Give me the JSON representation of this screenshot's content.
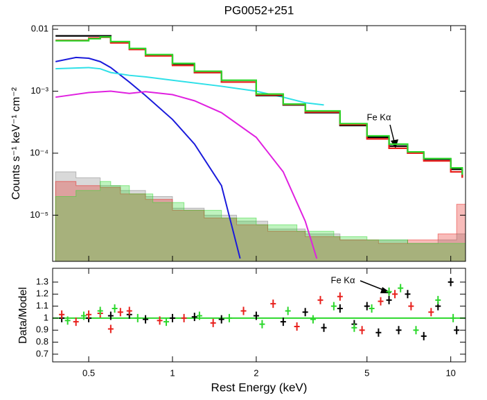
{
  "chart_data": [
    {
      "type": "line",
      "title": "PG0052+251",
      "ylabel": "Counts s⁻¹ keV⁻¹ cm⁻²",
      "annotation": "Fe Kα",
      "xscale": "log",
      "yscale": "log",
      "xlim": [
        0.371,
        11.3
      ],
      "ylim": [
        1.8e-06,
        0.0114
      ],
      "yticks": [
        {
          "value": 0.01,
          "label": "0.01"
        },
        {
          "value": 0.001,
          "label": "10⁻³"
        },
        {
          "value": 0.0001,
          "label": "10⁻⁴"
        },
        {
          "value": 1e-05,
          "label": "10⁻⁵"
        }
      ],
      "series": [
        {
          "name": "background 1",
          "style": "fill",
          "color": "#808080",
          "x": [
            0.38,
            0.45,
            0.55,
            0.65,
            0.8,
            1,
            1.3,
            1.7,
            2.2,
            3,
            4,
            5.5,
            7,
            9,
            10.5,
            11.3
          ],
          "values": [
            5e-05,
            4e-05,
            3e-05,
            2.5e-05,
            2e-05,
            1.3e-05,
            1e-05,
            8e-06,
            6e-06,
            5e-06,
            4e-06,
            4e-06,
            3.5e-06,
            4e-06,
            5e-06,
            5e-06
          ]
        },
        {
          "name": "background 2",
          "style": "fill",
          "color": "#e8201c",
          "x": [
            0.38,
            0.45,
            0.55,
            0.65,
            0.8,
            1,
            1.3,
            1.7,
            2.2,
            3,
            4,
            5.5,
            7,
            9,
            10.5,
            11.3
          ],
          "values": [
            3.5e-05,
            3e-05,
            2.8e-05,
            2.2e-05,
            1.8e-05,
            1.2e-05,
            9e-06,
            7e-06,
            5.5e-06,
            4.5e-06,
            4e-06,
            3.5e-06,
            4e-06,
            5e-06,
            1.5e-05,
            1.5e-05
          ]
        },
        {
          "name": "background 3",
          "style": "fill",
          "color": "#2bd82b",
          "x": [
            0.38,
            0.45,
            0.55,
            0.6,
            0.7,
            0.85,
            1.1,
            1.5,
            2,
            2.8,
            3.8,
            5,
            7,
            9,
            11.3
          ],
          "values": [
            2e-05,
            2.5e-05,
            3.5e-05,
            3e-05,
            2.2e-05,
            1.6e-05,
            1.2e-05,
            9e-06,
            7e-06,
            5.5e-06,
            4.5e-06,
            4e-06,
            3.5e-06,
            3.5e-06,
            3.5e-06
          ]
        },
        {
          "name": "soft component",
          "style": "line",
          "color": "#1a1adb",
          "x": [
            0.38,
            0.45,
            0.5,
            0.55,
            0.6,
            0.7,
            0.8,
            1,
            1.2,
            1.5,
            1.75
          ],
          "values": [
            0.003,
            0.0035,
            0.0034,
            0.003,
            0.0024,
            0.0014,
            0.00085,
            0.00035,
            0.00014,
            3e-05,
            2e-06
          ]
        },
        {
          "name": "power law",
          "style": "line",
          "color": "#2ee0e8",
          "x": [
            0.38,
            0.5,
            0.55,
            0.6,
            0.7,
            0.8,
            1,
            1.5,
            2,
            2.5,
            3,
            3.5
          ],
          "values": [
            0.0023,
            0.0024,
            0.0023,
            0.002,
            0.0018,
            0.0017,
            0.0015,
            0.0012,
            0.001,
            0.0008,
            0.00065,
            0.0006
          ]
        },
        {
          "name": "reflection",
          "style": "line",
          "color": "#e020e0",
          "x": [
            0.38,
            0.5,
            0.6,
            0.7,
            0.8,
            1,
            1.2,
            1.5,
            2,
            2.5,
            3,
            3.3
          ],
          "values": [
            0.0008,
            0.00095,
            0.001,
            0.00092,
            0.00098,
            0.00088,
            0.0007,
            0.00045,
            0.00018,
            5e-05,
            8e-06,
            2e-06
          ]
        },
        {
          "name": "spectrum 1",
          "style": "step",
          "color": "#000000",
          "x": [
            0.38,
            0.5,
            0.55,
            0.6,
            0.7,
            0.8,
            1,
            1.2,
            1.5,
            2,
            2.5,
            3,
            4,
            5,
            6,
            7,
            8,
            10,
            11
          ],
          "values": [
            0.0078,
            0.0078,
            0.0078,
            0.0062,
            0.0048,
            0.0038,
            0.0027,
            0.002,
            0.0014,
            0.00085,
            0.0006,
            0.00045,
            0.00028,
            0.00018,
            0.00013,
            0.0001,
            8e-05,
            5.5e-05,
            4e-05
          ]
        },
        {
          "name": "spectrum 2",
          "style": "step",
          "color": "#e8201c",
          "x": [
            0.38,
            0.5,
            0.55,
            0.6,
            0.7,
            0.8,
            1,
            1.2,
            1.5,
            2,
            2.5,
            3,
            4,
            5,
            6,
            7,
            8,
            10,
            11
          ],
          "values": [
            0.0066,
            0.0072,
            0.0074,
            0.006,
            0.0047,
            0.0037,
            0.0026,
            0.002,
            0.0014,
            0.00087,
            0.00061,
            0.00046,
            0.00029,
            0.00017,
            0.00012,
            0.0001,
            7.5e-05,
            5e-05,
            4e-05
          ]
        },
        {
          "name": "spectrum 3",
          "style": "step",
          "color": "#2bd82b",
          "x": [
            0.38,
            0.5,
            0.55,
            0.6,
            0.7,
            0.8,
            1,
            1.2,
            1.5,
            2,
            2.5,
            3,
            4,
            5,
            6,
            7,
            8,
            10,
            11
          ],
          "values": [
            0.0065,
            0.007,
            0.0075,
            0.0063,
            0.0049,
            0.0039,
            0.0028,
            0.0021,
            0.0015,
            0.0009,
            0.00062,
            0.00048,
            0.0003,
            0.00019,
            0.00014,
            0.000105,
            8.2e-05,
            5.8e-05,
            4.5e-05
          ]
        }
      ]
    },
    {
      "type": "scatter",
      "ylabel": "Data/Model",
      "xlabel": "Rest Energy (keV)",
      "annotation": "Fe Kα",
      "xscale": "log",
      "yscale": "linear",
      "xlim": [
        0.371,
        11.3
      ],
      "ylim": [
        0.636,
        1.415
      ],
      "xticks": [
        0.5,
        1,
        2,
        5,
        10
      ],
      "yticks": [
        0.7,
        0.8,
        0.9,
        1,
        1.1,
        1.2,
        1.3
      ],
      "hline": 1,
      "hline_color": "#2bd82b",
      "series": [
        {
          "name": "ratio 1",
          "color": "#000000",
          "x": [
            0.4,
            0.5,
            0.6,
            0.7,
            0.8,
            1,
            1.2,
            1.5,
            2,
            2.5,
            3,
            3.5,
            4,
            4.5,
            5,
            5.5,
            6,
            6.5,
            7,
            8,
            9,
            10,
            10.5
          ],
          "values": [
            1,
            1,
            1.02,
            1.03,
            0.99,
            1,
            1.01,
            0.99,
            1.02,
            0.97,
            1.05,
            0.92,
            1.08,
            0.95,
            1.1,
            0.88,
            1.15,
            0.9,
            1.2,
            0.85,
            1.1,
            1.3,
            0.9
          ]
        },
        {
          "name": "ratio 2",
          "color": "#e8201c",
          "x": [
            0.4,
            0.45,
            0.5,
            0.55,
            0.6,
            0.65,
            0.7,
            0.9,
            1.1,
            1.4,
            1.8,
            2.3,
            2.8,
            3.4,
            4,
            4.8,
            5.6,
            6.3,
            7.2,
            8.5
          ],
          "values": [
            1.03,
            0.97,
            1.03,
            1.04,
            0.91,
            1.05,
            1.06,
            0.98,
            1,
            0.96,
            1.06,
            1.12,
            0.93,
            1.15,
            1.18,
            0.9,
            1.14,
            1.2,
            1.1,
            1.05
          ]
        },
        {
          "name": "ratio 3",
          "color": "#2bd82b",
          "x": [
            0.42,
            0.48,
            0.55,
            0.62,
            0.75,
            0.95,
            1.25,
            1.6,
            2.1,
            2.6,
            3.2,
            3.8,
            4.5,
            5.2,
            6,
            6.6,
            7.5,
            9,
            10.2
          ],
          "values": [
            0.98,
            1.02,
            1.06,
            1.08,
            1,
            0.97,
            1.02,
            1,
            0.95,
            1.06,
            0.99,
            1.1,
            0.92,
            1.08,
            1.22,
            1.25,
            0.9,
            1.15,
            1
          ]
        }
      ]
    }
  ]
}
